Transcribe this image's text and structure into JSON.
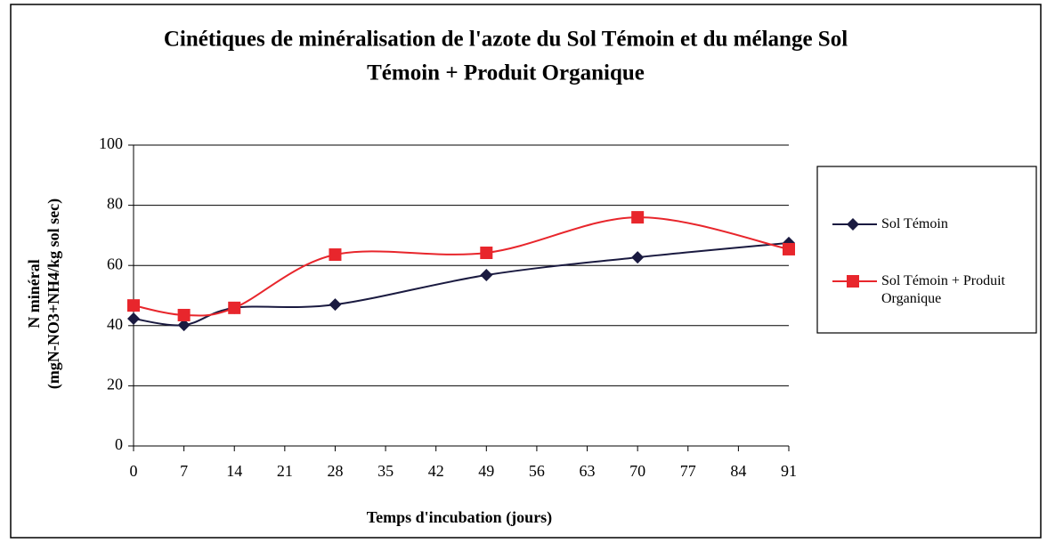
{
  "chart_data": {
    "type": "line",
    "title": [
      "Cinétiques de minéralisation de l'azote du Sol Témoin et du mélange Sol",
      "Témoin + Produit Organique"
    ],
    "xlabel": "Temps d'incubation (jours)",
    "ylabel": [
      "N minéral",
      "(mgN-NO3+NH4/kg sol sec)"
    ],
    "x": [
      0,
      7,
      14,
      28,
      49,
      70,
      91
    ],
    "series": [
      {
        "name": "Sol Témoin",
        "color": "#1a1a40",
        "marker": "diamond",
        "values": [
          42.3,
          40.2,
          45.9,
          47,
          56.8,
          62.7,
          67.5
        ]
      },
      {
        "name": "Sol Témoin + Produit Organique",
        "color": "#e8262c",
        "marker": "square",
        "values": [
          46.7,
          43.5,
          45.9,
          63.6,
          64.2,
          76,
          65.4
        ]
      }
    ],
    "xlim": [
      0,
      91
    ],
    "xticks": [
      0,
      7,
      14,
      21,
      28,
      35,
      42,
      49,
      56,
      63,
      70,
      77,
      84,
      91
    ],
    "ylim": [
      0,
      100
    ],
    "yticks": [
      0,
      20,
      40,
      60,
      80,
      100
    ],
    "grid": true,
    "smooth": true,
    "legend": "right"
  }
}
